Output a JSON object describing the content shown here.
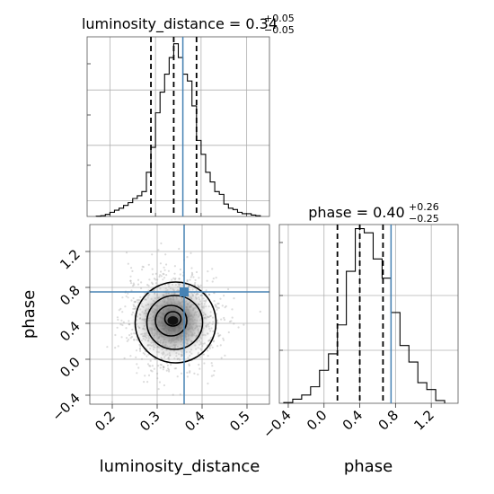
{
  "chart_data": [
    {
      "type": "histogram",
      "panel": "luminosity_distance marginal",
      "title": {
        "param": "luminosity_distance",
        "eq": " = ",
        "value": "0.34",
        "plus": "+0.05",
        "minus": "−0.05"
      },
      "xlim": [
        0.15,
        0.55
      ],
      "bin_edges": [
        0.17,
        0.18,
        0.19,
        0.2,
        0.21,
        0.22,
        0.23,
        0.24,
        0.25,
        0.26,
        0.27,
        0.28,
        0.29,
        0.3,
        0.31,
        0.32,
        0.33,
        0.34,
        0.35,
        0.36,
        0.37,
        0.38,
        0.39,
        0.4,
        0.41,
        0.42,
        0.43,
        0.44,
        0.45,
        0.46,
        0.47,
        0.48,
        0.49,
        0.5,
        0.51,
        0.52,
        0.53
      ],
      "counts": [
        0.2,
        0.5,
        1.5,
        3,
        4.5,
        6,
        8,
        10,
        13,
        15,
        18,
        32,
        50,
        75,
        90,
        103,
        115,
        125,
        115,
        103,
        98,
        80,
        55,
        45,
        32,
        25,
        18,
        16,
        9,
        6,
        5,
        3,
        2,
        2,
        1,
        0.5
      ],
      "quantiles": [
        0.29,
        0.34,
        0.39
      ],
      "truth": 0.36
    },
    {
      "type": "histogram",
      "panel": "phase marginal",
      "title": {
        "param": "phase",
        "eq": " = ",
        "value": "0.40",
        "plus": "+0.26",
        "minus": "−0.25"
      },
      "xlim": [
        -0.5,
        1.5
      ],
      "xticks": [
        "−0.4",
        "0.0",
        "0.4",
        "0.8",
        "1.2"
      ],
      "xtick_values": [
        -0.4,
        0.0,
        0.4,
        0.8,
        1.2
      ],
      "xlabel": "phase",
      "bin_edges": [
        -0.45,
        -0.35,
        -0.25,
        -0.15,
        -0.05,
        0.05,
        0.15,
        0.25,
        0.35,
        0.45,
        0.55,
        0.65,
        0.75,
        0.85,
        0.95,
        1.05,
        1.15,
        1.25,
        1.35
      ],
      "counts": [
        0.5,
        3,
        6,
        12,
        24,
        36,
        57,
        96,
        127,
        124,
        105,
        91,
        66,
        42,
        30,
        15,
        10,
        2
      ],
      "quantiles": [
        0.15,
        0.4,
        0.66
      ],
      "truth": 0.75
    },
    {
      "type": "scatter",
      "panel": "joint luminosity_distance vs phase",
      "xlabel": "luminosity_distance",
      "ylabel": "phase",
      "xlim": [
        0.15,
        0.55
      ],
      "ylim": [
        -0.5,
        1.5
      ],
      "xticks": [
        "0.2",
        "0.3",
        "0.4",
        "0.5"
      ],
      "xtick_values": [
        0.2,
        0.3,
        0.4,
        0.5
      ],
      "yticks": [
        "−0.4",
        "0.0",
        "0.4",
        "0.8",
        "1.2"
      ],
      "ytick_values": [
        -0.4,
        0.0,
        0.4,
        0.8,
        1.2
      ],
      "center": [
        0.335,
        0.43
      ],
      "spread": [
        0.05,
        0.26
      ],
      "contour_levels": [
        {
          "rx": 0.018,
          "ry": 0.08
        },
        {
          "rx": 0.035,
          "ry": 0.17
        },
        {
          "rx": 0.062,
          "ry": 0.3
        },
        {
          "rx": 0.09,
          "ry": 0.45
        }
      ],
      "truth": [
        0.36,
        0.75
      ]
    }
  ],
  "colors": {
    "truth": "#4682b4",
    "hist": "#000000",
    "points": "#999999"
  }
}
